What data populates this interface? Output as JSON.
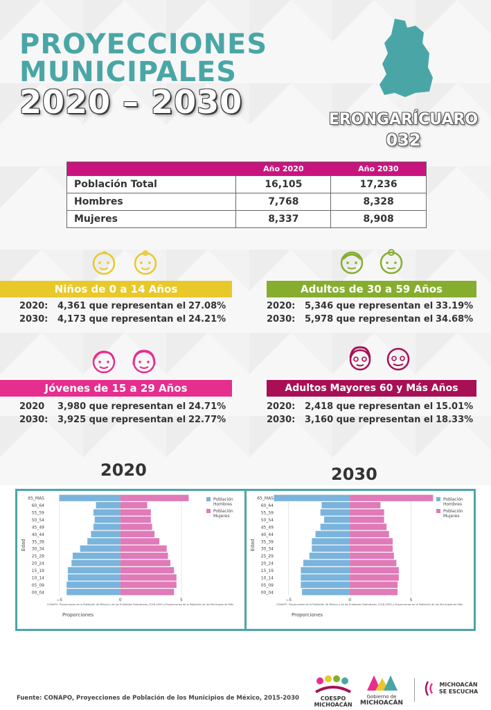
{
  "header": {
    "title_line1": "PROYECCIONES",
    "title_line2": "MUNICIPALES",
    "title_line3": "2020 – 2030",
    "municipality": "ERONGARÍCUARO",
    "code": "032"
  },
  "table": {
    "col_2020": "Año 2020",
    "col_2030": "Año 2030",
    "rows": [
      {
        "label": "Población Total",
        "v2020": "16,105",
        "v2030": "17,236"
      },
      {
        "label": "Hombres",
        "v2020": "7,768",
        "v2030": "8,328"
      },
      {
        "label": "Mujeres",
        "v2020": "8,337",
        "v2030": "8,908"
      }
    ]
  },
  "groups": {
    "ninos": {
      "title": "Niños de 0 a 14 Años",
      "r1": {
        "year": "2020:",
        "text": "4,361 que representan el",
        "pct": "27.08%"
      },
      "r2": {
        "year": "2030:",
        "text": "4,173 que representan el",
        "pct": "24.21%"
      }
    },
    "adultos": {
      "title": "Adultos de 30 a 59 Años",
      "r1": {
        "year": "2020:",
        "text": "5,346 que representan el",
        "pct": "33.19%"
      },
      "r2": {
        "year": "2030:",
        "text": "5,978 que representan el",
        "pct": "34.68%"
      }
    },
    "jovenes": {
      "title": "Jóvenes de 15 a 29 Años",
      "r1": {
        "year": "2020",
        "text": "3,980 que representan el",
        "pct": "24.71%"
      },
      "r2": {
        "year": "2030:",
        "text": "3,925 que representan el",
        "pct": "22.77%"
      }
    },
    "mayores": {
      "title": "Adultos Mayores  60 y Más Años",
      "r1": {
        "year": "2020:",
        "text": "2,418 que representan el",
        "pct": "15.01%"
      },
      "r2": {
        "year": "2030:",
        "text": "3,160 que representan el",
        "pct": "18.33%"
      }
    }
  },
  "colors": {
    "teal": "#4aa6a6",
    "magenta": "#c8157e",
    "hombres": "#7ab4dc",
    "mujeres": "#e07ab8"
  },
  "chart_data": [
    {
      "type": "bar",
      "title": "2020",
      "orientation": "horizontal-pyramid",
      "ylabel": "Edad",
      "xlabel": "Proporciones",
      "note": "CONAPO. Proyecciones de la Población de México y de las Entidades Federativas, 2016-2050 y Proyecciones de la Población de los Municipios de Méx",
      "xlim": [
        -6,
        10
      ],
      "xticks": [
        "−5",
        "0",
        "5"
      ],
      "categories": [
        "65_MAS",
        "60_64",
        "55_59",
        "50_54",
        "45_49",
        "40_44",
        "35_39",
        "30_34",
        "25_29",
        "20_24",
        "15_19",
        "10_14",
        "05_09",
        "00_04"
      ],
      "series": [
        {
          "name": "Población Hombres",
          "values": [
            -5.0,
            -2.0,
            -2.2,
            -2.1,
            -2.2,
            -2.4,
            -2.7,
            -3.3,
            -3.9,
            -4.0,
            -4.3,
            -4.3,
            -4.4,
            -4.4
          ]
        },
        {
          "name": "Población Mujeres",
          "values": [
            5.6,
            2.2,
            2.5,
            2.5,
            2.6,
            2.8,
            3.2,
            3.8,
            3.9,
            4.1,
            4.4,
            4.6,
            4.6,
            4.4
          ]
        }
      ]
    },
    {
      "type": "bar",
      "title": "2030",
      "orientation": "horizontal-pyramid",
      "ylabel": "Edad",
      "xlabel": "Proporciones",
      "note": "CONAPO. Proyecciones de la Población de México y de las Entidades Federativas, 2016-2050 y Proyecciones de la Población de los Municipios de Méx",
      "xlim": [
        -6,
        10
      ],
      "xticks": [
        "−5",
        "0",
        "5"
      ],
      "categories": [
        "65_MAS",
        "60_64",
        "55_59",
        "50_54",
        "45_49",
        "40_44",
        "35_39",
        "30_34",
        "25_29",
        "20_24",
        "15_19",
        "10_14",
        "05_09",
        "00_04"
      ],
      "series": [
        {
          "name": "Población Hombres",
          "values": [
            -6.2,
            -2.3,
            -2.4,
            -2.1,
            -2.4,
            -2.8,
            -3.1,
            -3.1,
            -3.3,
            -3.8,
            -4.0,
            -4.0,
            -4.0,
            -3.9
          ]
        },
        {
          "name": "Población Mujeres",
          "values": [
            6.8,
            2.5,
            2.8,
            2.8,
            3.0,
            3.2,
            3.5,
            3.5,
            3.6,
            3.8,
            4.0,
            4.0,
            3.9,
            3.9
          ]
        }
      ]
    }
  ],
  "footer": {
    "source": "Fuente: CONAPO, Proyecciones de Población de los Municipios de México, 2015-2030",
    "logo1": "COESPO MICHOACÁN",
    "logo2_a": "Gobierno de",
    "logo2_b": "MICHOACÁN",
    "logo3_a": "MICHOACÁN",
    "logo3_b": "SE ESCUCHA"
  }
}
